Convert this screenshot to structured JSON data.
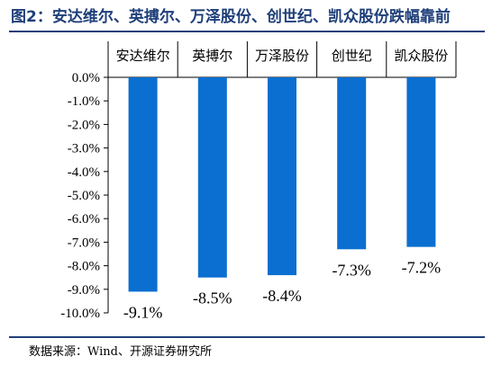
{
  "title": "图2：安达维尔、英搏尔、万泽股份、创世纪、凯众股份跌幅靠前",
  "source": "数据来源：Wind、开源证券研究所",
  "colors": {
    "bar": "#0a6fd0",
    "title": "#1f3f7a"
  },
  "chart_data": {
    "type": "bar",
    "categories": [
      "安达维尔",
      "英搏尔",
      "万泽股份",
      "创世纪",
      "凯众股份"
    ],
    "values": [
      -9.1,
      -8.5,
      -8.4,
      -7.3,
      -7.2
    ],
    "data_labels": [
      "-9.1%",
      "-8.5%",
      "-8.4%",
      "-7.3%",
      "-7.2%"
    ],
    "y_ticks": [
      "0.0%",
      "-1.0%",
      "-2.0%",
      "-3.0%",
      "-4.0%",
      "-5.0%",
      "-6.0%",
      "-7.0%",
      "-8.0%",
      "-9.0%",
      "-10.0%"
    ],
    "ylim": [
      -10,
      0
    ],
    "xaxis_position": "top",
    "grid": false,
    "legend": "none"
  }
}
